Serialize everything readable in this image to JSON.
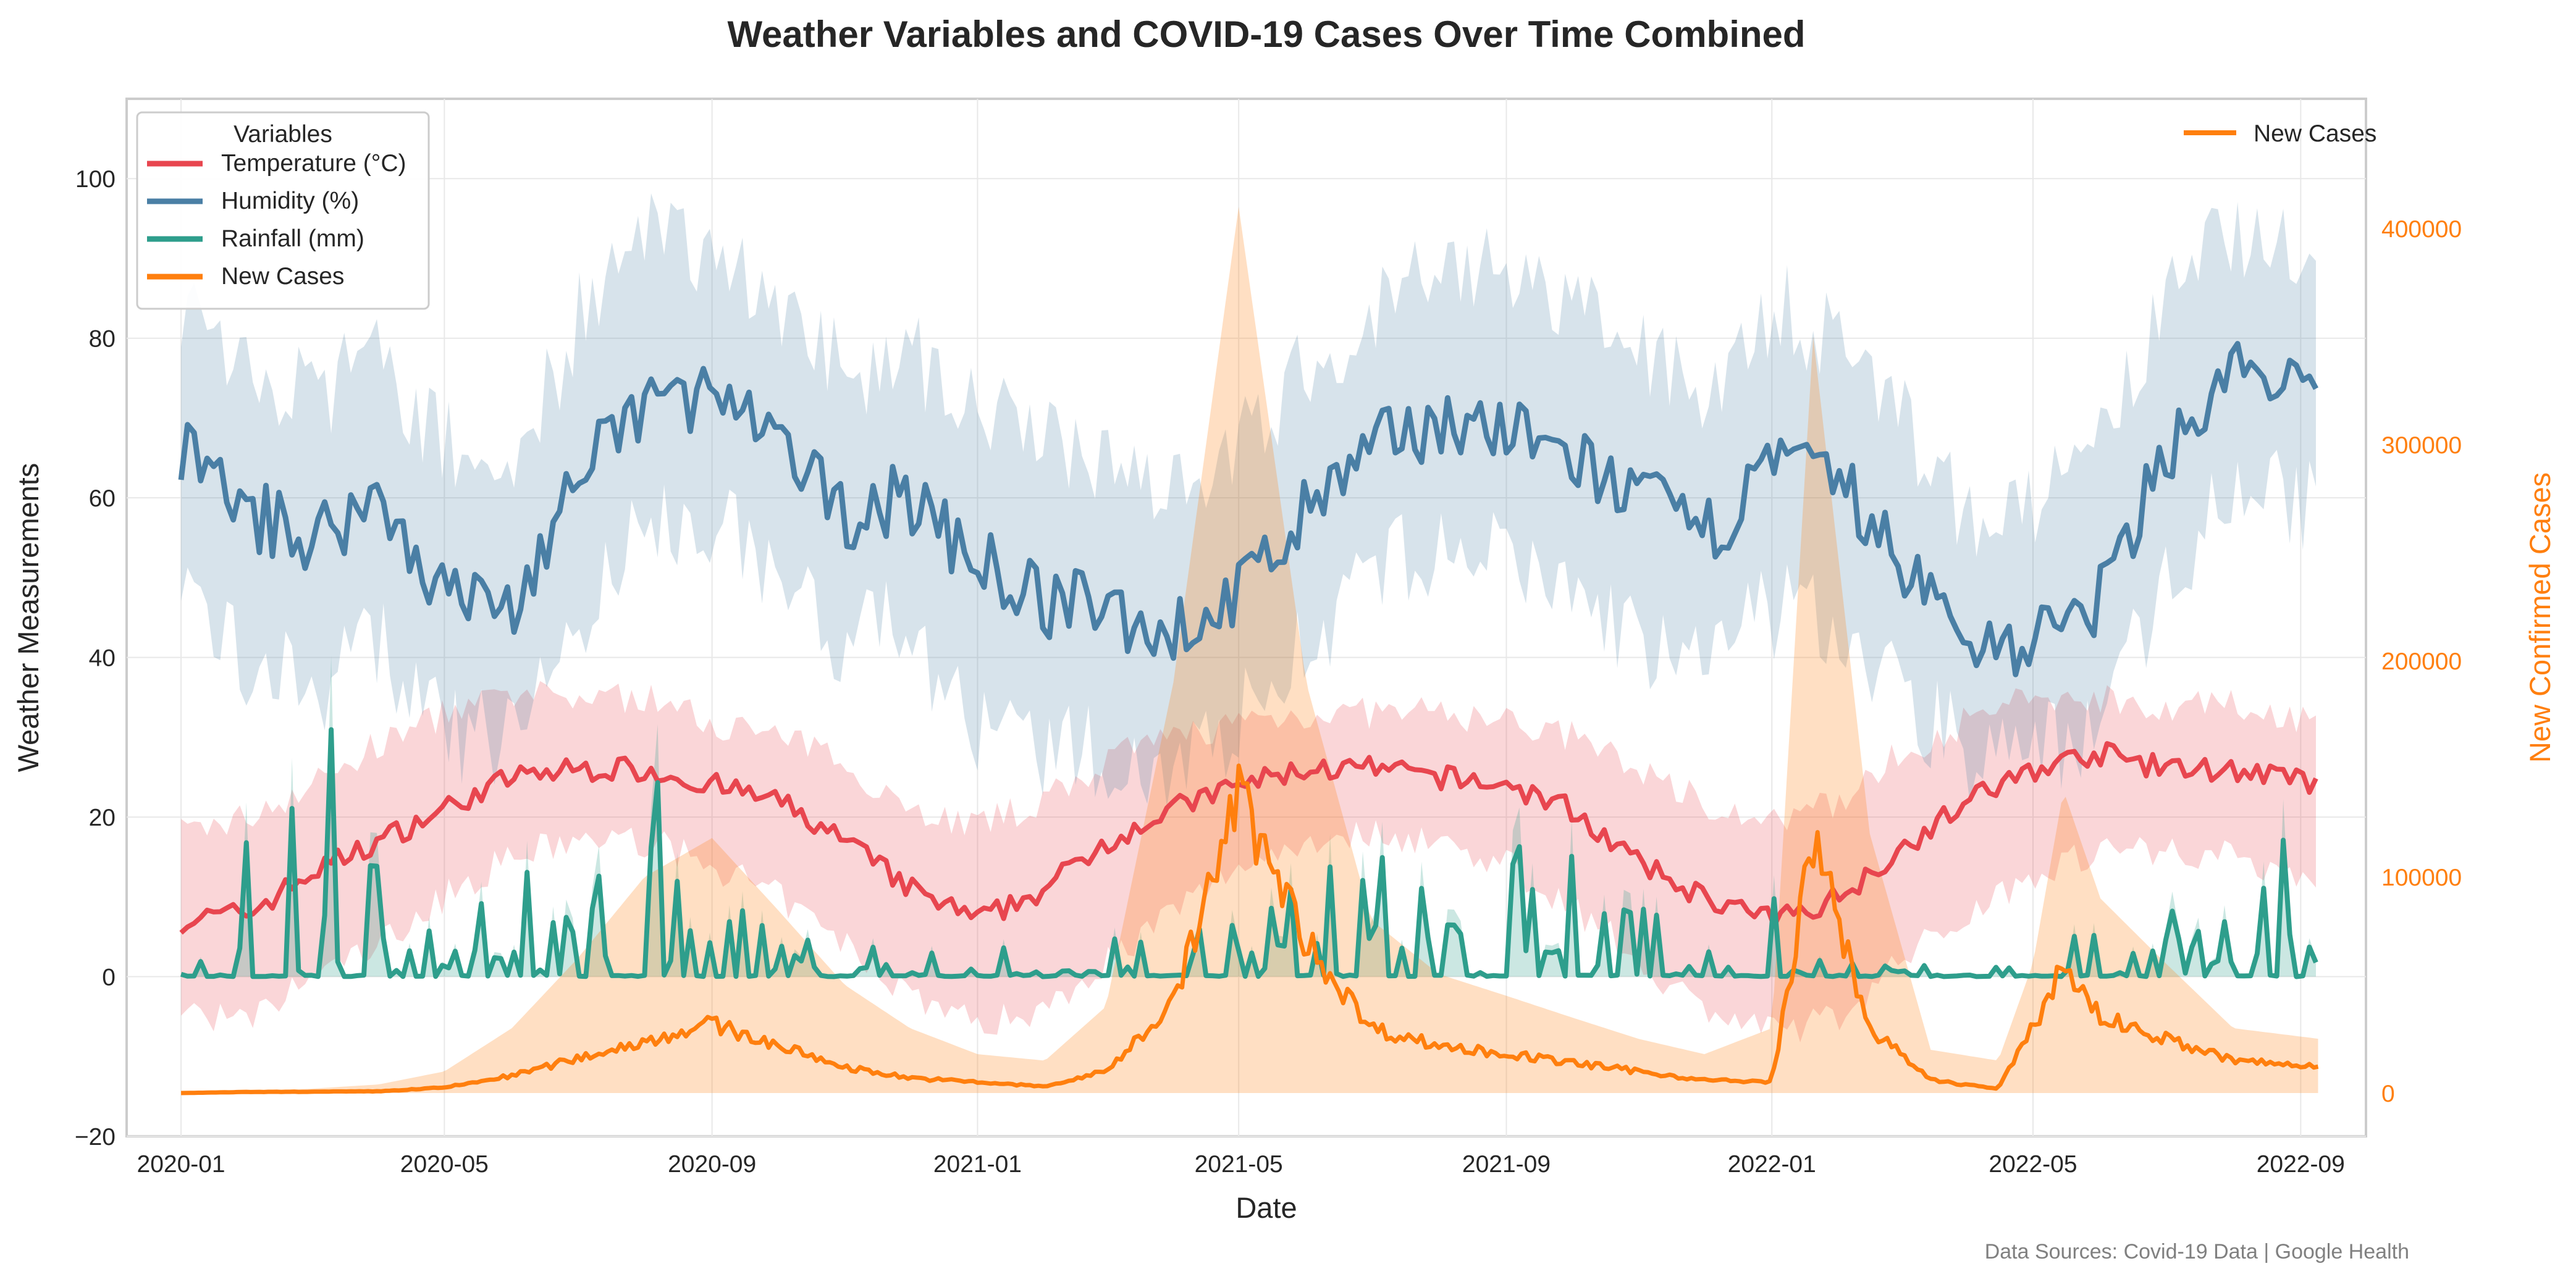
{
  "chart_data": {
    "type": "line",
    "title": "Weather Variables and COVID-19 Cases Over Time Combined",
    "xlabel": "Date",
    "ylabel": "Weather Measurements",
    "y2label": "New Confirmed Cases",
    "x_range": [
      "2019-12-07",
      "2022-10-01"
    ],
    "ylim": [
      -20,
      110
    ],
    "y2lim": [
      -20000,
      460000
    ],
    "x_ticks": [
      "2020-01",
      "2020-05",
      "2020-09",
      "2021-01",
      "2021-05",
      "2021-09",
      "2022-01",
      "2022-05",
      "2022-09"
    ],
    "y_ticks": [
      -20,
      0,
      20,
      40,
      60,
      80,
      100
    ],
    "y2_ticks": [
      0,
      100000,
      200000,
      300000,
      400000
    ],
    "grid": true,
    "legend_left": {
      "title": "Variables",
      "placement": "top-left",
      "entries": [
        "Temperature (°C)",
        "Humidity (%)",
        "Rainfall (mm)",
        "New Cases"
      ]
    },
    "legend_right": {
      "placement": "top-right",
      "entries": [
        "New Cases"
      ]
    },
    "colors": {
      "temperature": "#e8464f",
      "humidity": "#4a7fa5",
      "rainfall": "#2e9e8c",
      "new_cases": "#ff7f0e"
    },
    "series": [
      {
        "name": "Temperature (°C)",
        "axis": "left",
        "x": [
          "2020-01-01",
          "2020-02-01",
          "2020-03-01",
          "2020-04-01",
          "2020-05-01",
          "2020-06-01",
          "2020-07-01",
          "2020-08-01",
          "2020-09-01",
          "2020-10-01",
          "2020-11-01",
          "2020-12-01",
          "2021-01-01",
          "2021-02-01",
          "2021-03-01",
          "2021-04-01",
          "2021-05-01",
          "2021-06-01",
          "2021-07-01",
          "2021-08-01",
          "2021-09-01",
          "2021-10-01",
          "2021-11-01",
          "2021-12-01",
          "2022-01-01",
          "2022-02-01",
          "2022-03-01",
          "2022-04-01",
          "2022-05-01",
          "2022-06-01",
          "2022-07-01",
          "2022-08-01",
          "2022-09-10"
        ],
        "values": [
          7,
          8,
          13,
          17,
          21,
          25,
          26,
          26,
          24,
          22,
          17,
          11,
          7,
          11,
          17,
          21,
          24,
          26,
          26,
          25,
          24,
          21,
          14,
          10,
          7,
          10,
          16,
          22,
          26,
          28,
          26,
          26,
          24
        ],
        "band_low": [
          -4,
          -6,
          0,
          4,
          10,
          15,
          17,
          17,
          14,
          10,
          4,
          -2,
          -6,
          -4,
          2,
          8,
          14,
          17,
          18,
          17,
          14,
          9,
          2,
          -4,
          -7,
          -5,
          2,
          8,
          13,
          16,
          16,
          15,
          12
        ],
        "band_high": [
          18,
          20,
          24,
          29,
          33,
          35,
          35,
          35,
          32,
          30,
          27,
          21,
          19,
          22,
          27,
          30,
          32,
          33,
          33,
          33,
          32,
          30,
          26,
          22,
          19,
          22,
          28,
          32,
          35,
          35,
          34,
          34,
          32
        ]
      },
      {
        "name": "Humidity (%)",
        "axis": "left",
        "x": [
          "2020-01-01",
          "2020-02-01",
          "2020-03-01",
          "2020-04-01",
          "2020-05-01",
          "2020-06-01",
          "2020-07-01",
          "2020-08-01",
          "2020-09-01",
          "2020-10-01",
          "2020-11-01",
          "2020-12-01",
          "2021-01-01",
          "2021-02-01",
          "2021-03-01",
          "2021-04-01",
          "2021-05-01",
          "2021-06-01",
          "2021-07-01",
          "2021-08-01",
          "2021-09-01",
          "2021-10-01",
          "2021-11-01",
          "2021-12-01",
          "2022-01-01",
          "2022-02-01",
          "2022-03-01",
          "2022-04-01",
          "2022-05-01",
          "2022-06-01",
          "2022-07-01",
          "2022-08-01",
          "2022-09-10"
        ],
        "values": [
          66,
          58,
          55,
          60,
          48,
          46,
          62,
          72,
          73,
          66,
          58,
          60,
          52,
          47,
          46,
          43,
          48,
          58,
          66,
          70,
          68,
          65,
          60,
          55,
          64,
          62,
          52,
          42,
          42,
          47,
          66,
          76,
          72
        ],
        "band_low": [
          48,
          40,
          36,
          42,
          30,
          30,
          44,
          56,
          58,
          50,
          42,
          44,
          30,
          28,
          28,
          26,
          32,
          42,
          50,
          54,
          52,
          48,
          42,
          38,
          46,
          44,
          36,
          28,
          28,
          32,
          50,
          62,
          58
        ],
        "band_high": [
          84,
          76,
          72,
          78,
          66,
          64,
          82,
          92,
          92,
          84,
          76,
          78,
          72,
          66,
          66,
          62,
          66,
          76,
          84,
          88,
          88,
          84,
          78,
          74,
          84,
          80,
          70,
          58,
          58,
          66,
          84,
          94,
          88
        ]
      },
      {
        "name": "Rainfall (mm)",
        "axis": "left",
        "x": [
          "2020-01-15",
          "2020-02-15",
          "2020-03-15",
          "2020-04-15",
          "2020-05-15",
          "2020-06-15",
          "2020-07-15",
          "2020-08-15",
          "2020-09-15",
          "2020-10-15",
          "2020-11-15",
          "2020-12-15",
          "2021-01-15",
          "2021-02-15",
          "2021-03-15",
          "2021-04-15",
          "2021-05-15",
          "2021-06-15",
          "2021-07-15",
          "2021-08-15",
          "2021-09-15",
          "2021-10-15",
          "2021-11-15",
          "2021-12-15",
          "2022-01-15",
          "2022-02-15",
          "2022-03-15",
          "2022-04-15",
          "2022-05-15",
          "2022-06-15",
          "2022-07-15",
          "2022-08-15",
          "2022-09-10"
        ],
        "values": [
          3,
          4,
          7,
          6,
          3,
          5,
          8,
          10,
          7,
          3,
          2,
          1,
          1,
          1,
          2,
          3,
          4,
          5,
          6,
          5,
          4,
          3,
          2,
          1,
          3,
          2,
          1,
          1,
          1,
          3,
          6,
          10,
          1
        ],
        "peaks": [
          16,
          29,
          35,
          16,
          17,
          15,
          18,
          27,
          12,
          8,
          6,
          4,
          5,
          8,
          7,
          10,
          12,
          14,
          16,
          16,
          20,
          12,
          8,
          5,
          18,
          10,
          7,
          4,
          6,
          10,
          14,
          26,
          3
        ]
      },
      {
        "name": "New Cases",
        "axis": "right",
        "x": [
          "2020-01-01",
          "2020-02-01",
          "2020-03-01",
          "2020-04-01",
          "2020-05-01",
          "2020-06-01",
          "2020-07-01",
          "2020-08-01",
          "2020-09-01",
          "2020-10-01",
          "2020-11-01",
          "2020-12-01",
          "2021-01-01",
          "2021-02-01",
          "2021-03-01",
          "2021-04-01",
          "2021-05-01",
          "2021-06-01",
          "2021-07-01",
          "2021-08-01",
          "2021-09-01",
          "2021-10-01",
          "2021-11-01",
          "2021-12-01",
          "2022-01-01",
          "2022-01-20",
          "2022-02-15",
          "2022-03-15",
          "2022-04-15",
          "2022-05-01",
          "2022-05-15",
          "2022-06-01",
          "2022-07-01",
          "2022-08-01",
          "2022-09-10"
        ],
        "values": [
          0,
          500,
          600,
          800,
          2500,
          8000,
          16000,
          24000,
          32000,
          22000,
          12000,
          7000,
          5000,
          3000,
          10000,
          42000,
          138000,
          70000,
          30000,
          22000,
          18000,
          14000,
          10000,
          6000,
          5000,
          118000,
          30000,
          6000,
          2000,
          30000,
          60000,
          35000,
          25000,
          15000,
          12000
        ],
        "band_high": [
          0,
          1000,
          2000,
          4000,
          10000,
          30000,
          62000,
          100000,
          118000,
          85000,
          50000,
          30000,
          18000,
          15000,
          40000,
          190000,
          410000,
          190000,
          80000,
          55000,
          45000,
          35000,
          25000,
          18000,
          30000,
          350000,
          120000,
          20000,
          15000,
          60000,
          140000,
          90000,
          60000,
          30000,
          25000
        ]
      }
    ],
    "source": "Data Sources: Covid-19 Data | Google Health"
  }
}
